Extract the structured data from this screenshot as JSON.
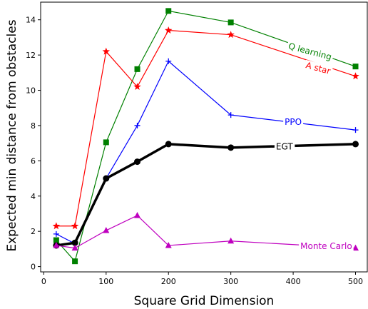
{
  "chart_data": {
    "type": "line",
    "title": "",
    "xlabel": "Square Grid Dimension",
    "ylabel": "Expected min distance from obstacles",
    "xlim": [
      -5,
      520
    ],
    "ylim": [
      -0.3,
      15.0
    ],
    "xticks": [
      0,
      100,
      200,
      300,
      400,
      500
    ],
    "yticks": [
      0,
      2,
      4,
      6,
      8,
      10,
      12,
      14
    ],
    "x": [
      20,
      50,
      100,
      150,
      200,
      300,
      500
    ],
    "grid": false,
    "legend": "none",
    "series": [
      {
        "name": "Q learning",
        "color": "#008000",
        "marker": "square",
        "linewidth": 1.2,
        "values": [
          1.5,
          0.3,
          7.05,
          11.2,
          14.5,
          13.85,
          11.35
        ],
        "label_pos": {
          "x": 427,
          "y": 12.2,
          "rotate": 15
        }
      },
      {
        "name": "A star",
        "color": "#ff0000",
        "marker": "star",
        "linewidth": 1.2,
        "values": [
          2.3,
          2.3,
          12.2,
          10.2,
          13.4,
          13.15,
          10.8
        ],
        "label_pos": {
          "x": 440,
          "y": 11.25,
          "rotate": 15
        }
      },
      {
        "name": "PPO",
        "color": "#0000ff",
        "marker": "plus",
        "linewidth": 1.2,
        "values": [
          1.85,
          1.3,
          5.0,
          8.0,
          11.65,
          8.6,
          7.75
        ],
        "label_pos": {
          "x": 400,
          "y": 8.2,
          "rotate": 0
        }
      },
      {
        "name": "EGT",
        "color": "#000000",
        "marker": "circle",
        "linewidth": 3.5,
        "values": [
          1.2,
          1.35,
          5.0,
          5.95,
          6.95,
          6.75,
          6.95
        ],
        "label_pos": {
          "x": 386,
          "y": 6.8,
          "rotate": 0
        }
      },
      {
        "name": "Monte Carlo",
        "color": "#bf00bf",
        "marker": "triangle",
        "linewidth": 1.2,
        "values": [
          1.2,
          1.05,
          2.05,
          2.9,
          1.2,
          1.45,
          1.05
        ],
        "label_pos": {
          "x": 453,
          "y": 1.15,
          "rotate": 0
        }
      }
    ]
  }
}
